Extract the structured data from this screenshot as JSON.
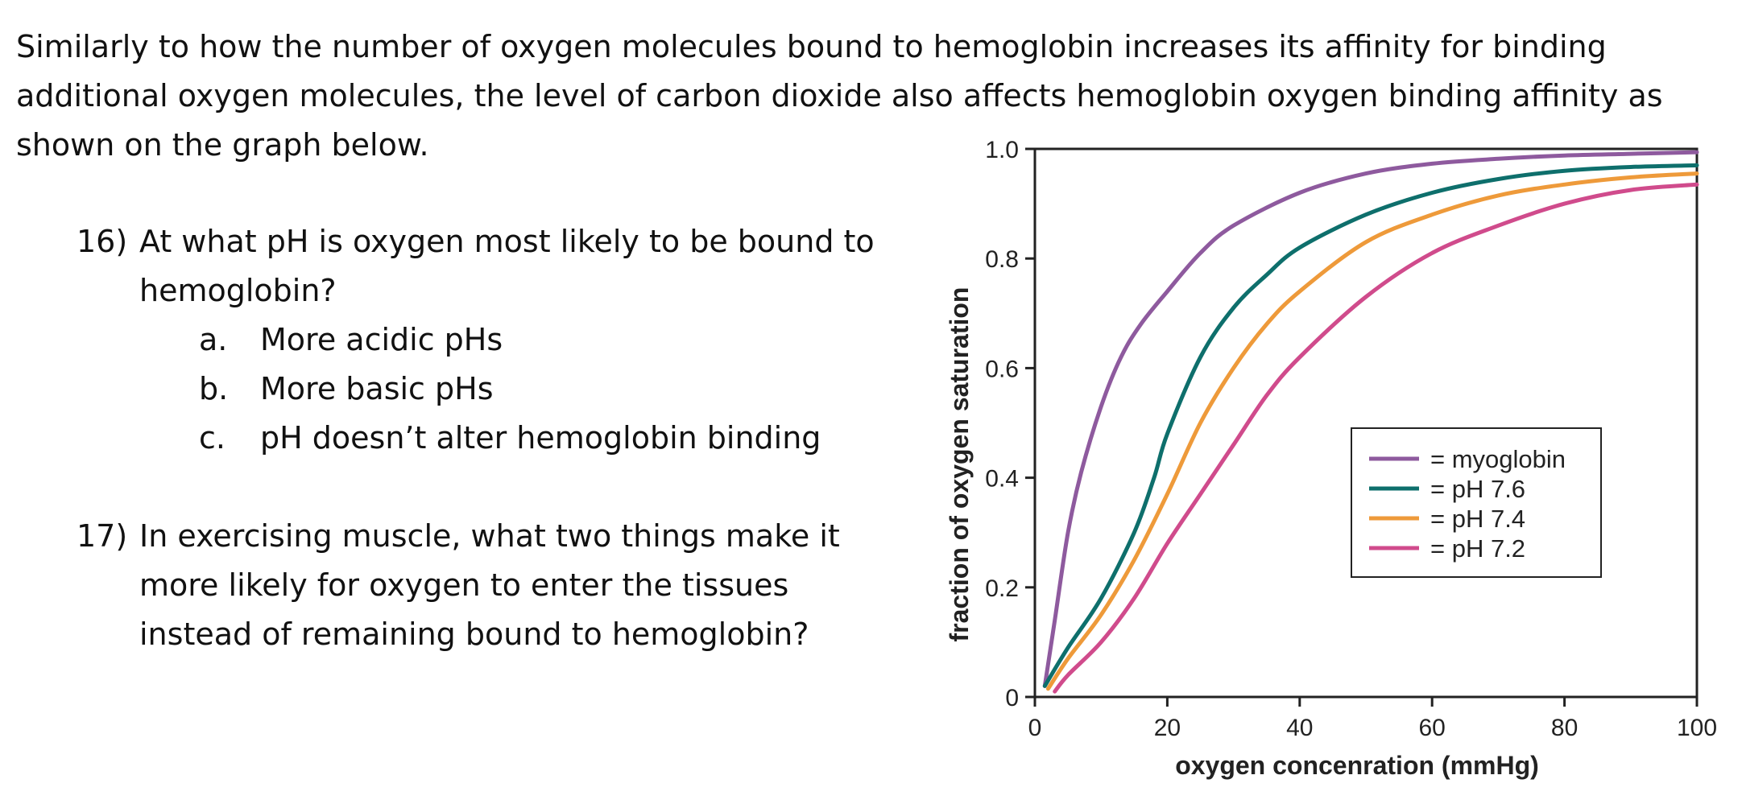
{
  "intro": {
    "lines": [
      "Similarly to how the number of oxygen molecules bound to hemoglobin increases its affinity for binding",
      "additional oxygen molecules, the level of carbon dioxide also affects hemoglobin oxygen binding affinity as",
      "shown on the graph below."
    ]
  },
  "questions": [
    {
      "number": "16)",
      "lines": [
        "At what pH is oxygen most likely to be bound to",
        "hemoglobin?"
      ],
      "options": [
        {
          "letter": "a.",
          "text": "More acidic pHs"
        },
        {
          "letter": "b.",
          "text": "More basic pHs"
        },
        {
          "letter": "c.",
          "text": "pH doesn’t alter hemoglobin binding"
        }
      ]
    },
    {
      "number": "17)",
      "lines": [
        "In exercising muscle, what two things make it",
        "more likely for oxygen to enter the tissues",
        "instead of remaining bound to hemoglobin?"
      ]
    }
  ],
  "chart_data": {
    "type": "line",
    "title": "",
    "xlabel": "oxygen concenration (mmHg)",
    "ylabel": "fraction of oxygen saturation",
    "xlim": [
      0,
      100
    ],
    "ylim": [
      0,
      1.0
    ],
    "xticks": [
      "0",
      "20",
      "40",
      "60",
      "80",
      "100"
    ],
    "yticks": [
      "0",
      "0.2",
      "0.4",
      "0.6",
      "0.8",
      "1.0"
    ],
    "grid": false,
    "legend_position": "center-right",
    "series": [
      {
        "name": "= myoglobin",
        "color": "#8e5a9e",
        "x": [
          1.5,
          3,
          5,
          7,
          10,
          13,
          16,
          20,
          25,
          30,
          40,
          50,
          60,
          70,
          80,
          90,
          100
        ],
        "y": [
          0.02,
          0.14,
          0.3,
          0.41,
          0.53,
          0.62,
          0.68,
          0.74,
          0.81,
          0.86,
          0.92,
          0.955,
          0.973,
          0.982,
          0.988,
          0.991,
          0.994
        ]
      },
      {
        "name": "= pH 7.6",
        "color": "#0e6f6c",
        "x": [
          1.5,
          5,
          10,
          15,
          18,
          20,
          25,
          30,
          35,
          40,
          50,
          60,
          70,
          80,
          90,
          100
        ],
        "y": [
          0.02,
          0.09,
          0.18,
          0.3,
          0.4,
          0.48,
          0.62,
          0.71,
          0.77,
          0.82,
          0.88,
          0.92,
          0.945,
          0.96,
          0.967,
          0.97
        ]
      },
      {
        "name": "= pH 7.4",
        "color": "#ee9a3a",
        "x": [
          2,
          5,
          10,
          15,
          20,
          25,
          30,
          35,
          40,
          50,
          60,
          70,
          80,
          90,
          100
        ],
        "y": [
          0.015,
          0.07,
          0.15,
          0.25,
          0.37,
          0.5,
          0.6,
          0.68,
          0.74,
          0.83,
          0.88,
          0.915,
          0.935,
          0.948,
          0.955
        ]
      },
      {
        "name": "= pH 7.2",
        "color": "#d04b8c",
        "x": [
          3,
          5,
          10,
          15,
          20,
          25,
          30,
          35,
          40,
          50,
          60,
          70,
          80,
          90,
          100
        ],
        "y": [
          0.01,
          0.04,
          0.1,
          0.18,
          0.28,
          0.37,
          0.46,
          0.55,
          0.62,
          0.73,
          0.81,
          0.86,
          0.9,
          0.925,
          0.935
        ]
      }
    ]
  }
}
